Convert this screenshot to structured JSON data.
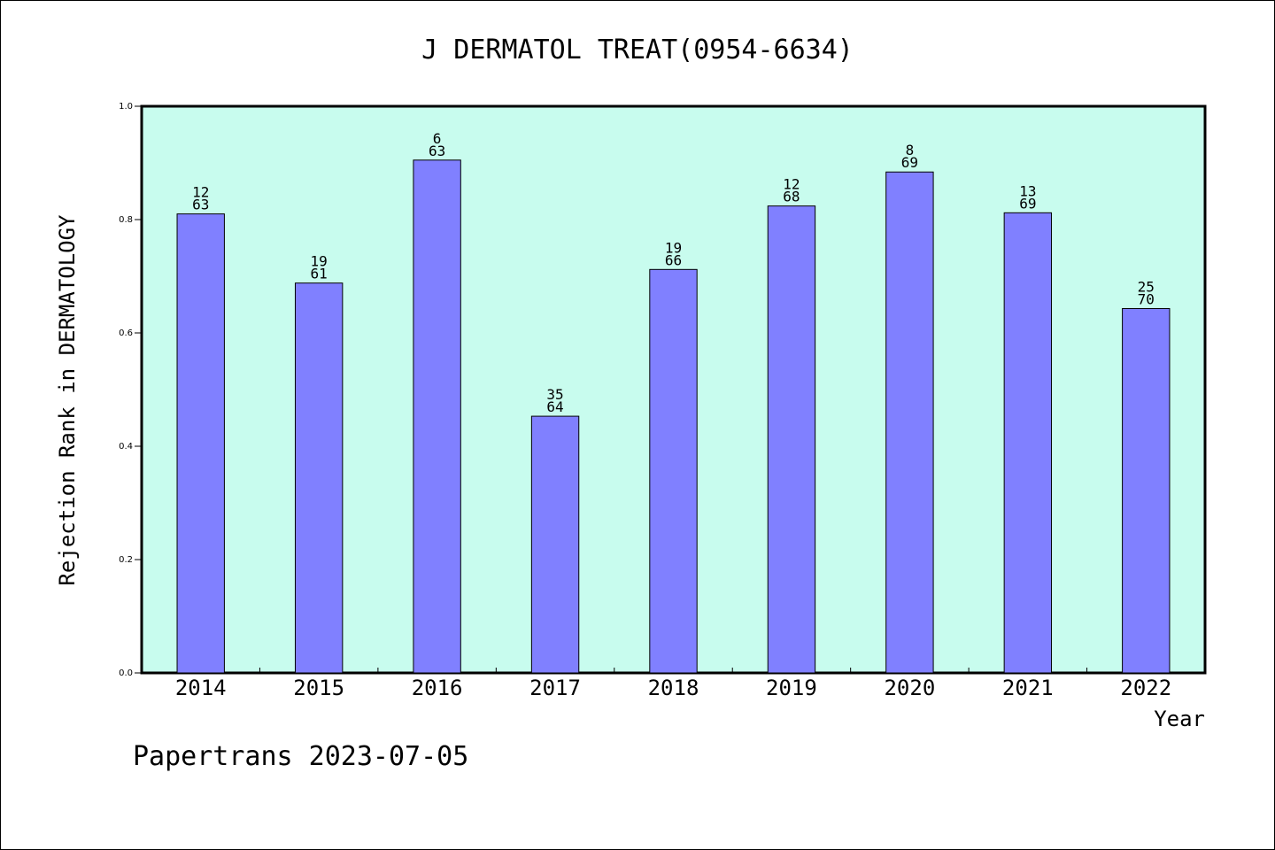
{
  "chart_data": {
    "type": "bar",
    "title": "J DERMATOL TREAT(0954-6634)",
    "xlabel": "Year",
    "ylabel": "Rejection Rank in DERMATOLOGY",
    "ylim": [
      0,
      1.0
    ],
    "yticks": [
      "0.0",
      "0.2",
      "0.4",
      "0.6",
      "0.8",
      "1.0"
    ],
    "grid": false,
    "categories": [
      "2014",
      "2015",
      "2016",
      "2017",
      "2018",
      "2019",
      "2020",
      "2021",
      "2022"
    ],
    "values": [
      0.81,
      0.688,
      0.905,
      0.453,
      0.712,
      0.824,
      0.884,
      0.812,
      0.643
    ],
    "labels_top": [
      "12",
      "19",
      "6",
      "35",
      "19",
      "12",
      "8",
      "13",
      "25"
    ],
    "labels_bottom": [
      "63",
      "61",
      "63",
      "64",
      "66",
      "68",
      "69",
      "69",
      "70"
    ],
    "colors": {
      "plot_background": "#c8fcee",
      "bar_fill": "#8080ff",
      "bar_stroke": "#000000"
    }
  },
  "footer": {
    "text": "Papertrans 2023-07-05"
  }
}
